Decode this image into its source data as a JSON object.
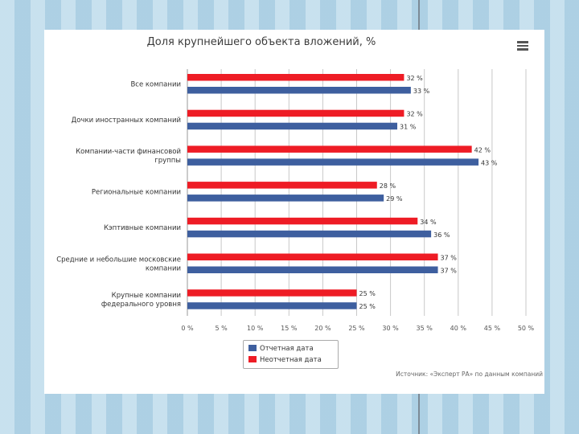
{
  "chart_data": {
    "type": "bar",
    "orientation": "horizontal",
    "title": "Доля крупнейшего объекта вложений, %",
    "categories": [
      [
        "Все компании"
      ],
      [
        "Дочки иностранных компаний"
      ],
      [
        "Компании-части финансовой",
        "группы"
      ],
      [
        "Региональные компании"
      ],
      [
        "Кэптивные компании"
      ],
      [
        "Средние и небольшие московские",
        "компании"
      ],
      [
        "Крупные компании",
        "федерального уровня"
      ]
    ],
    "series": [
      {
        "name": "Неотчетная дата",
        "color": "#ee1c25",
        "values": [
          32,
          32,
          42,
          28,
          34,
          37,
          25
        ],
        "labels": [
          "32 %",
          "32 %",
          "42 %",
          "28 %",
          "34 %",
          "37 %",
          "25 %"
        ]
      },
      {
        "name": "Отчетная дата",
        "color": "#3e5f9f",
        "values": [
          33,
          31,
          43,
          29,
          36,
          37,
          25
        ],
        "labels": [
          "33 %",
          "31 %",
          "43 %",
          "29 %",
          "36 %",
          "37 %",
          "25 %"
        ]
      }
    ],
    "xlim": [
      0,
      50
    ],
    "xticks": [
      "0 %",
      "5 %",
      "10 %",
      "15 %",
      "20 %",
      "25 %",
      "30 %",
      "35 %",
      "40 %",
      "45 %",
      "50 %"
    ],
    "grid": true
  },
  "legend": {
    "items": [
      {
        "label": "Отчетная дата",
        "color": "#3e5f9f"
      },
      {
        "label": "Неотчетная дата",
        "color": "#ee1c25"
      }
    ]
  },
  "source": "Источник: «Эксперт РА» по данным компаний"
}
